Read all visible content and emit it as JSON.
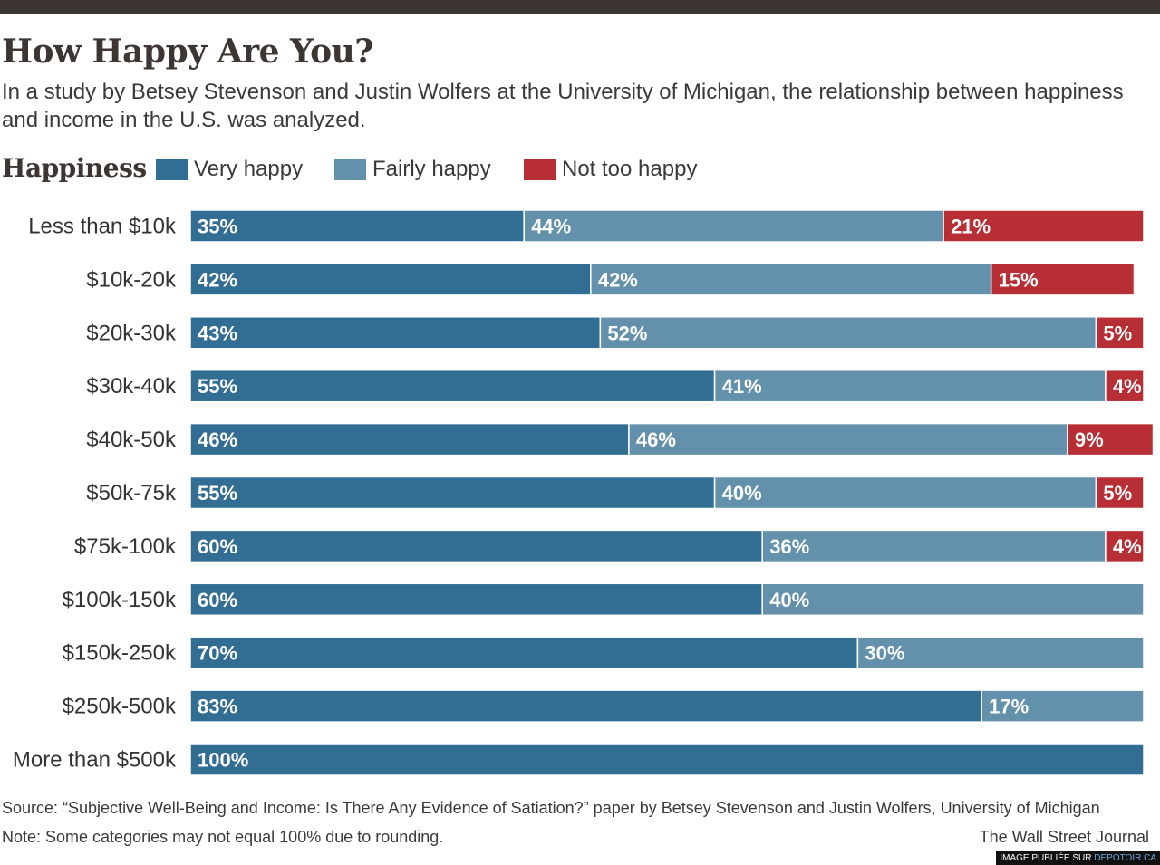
{
  "title": "How Happy Are You?",
  "subtitle": "In a study by Betsey Stevenson and Justin Wolfers at the University of Michigan, the relationship between happiness and income in the U.S. was analyzed.",
  "legend": {
    "title": "Happiness",
    "items": [
      {
        "label": "Very happy",
        "color": "#326d93"
      },
      {
        "label": "Fairly happy",
        "color": "#6390ab"
      },
      {
        "label": "Not too happy",
        "color": "#b72f35"
      }
    ]
  },
  "chart_data": {
    "type": "bar",
    "orientation": "horizontal",
    "stacked": true,
    "categories": [
      "Less than $10k",
      "$10k-20k",
      "$20k-30k",
      "$30k-40k",
      "$40k-50k",
      "$50k-75k",
      "$75k-100k",
      "$100k-150k",
      "$150k-250k",
      "$250k-500k",
      "More than $500k"
    ],
    "series": [
      {
        "name": "Very happy",
        "color": "#326d93",
        "values": [
          35,
          42,
          43,
          55,
          46,
          55,
          60,
          60,
          70,
          83,
          100
        ]
      },
      {
        "name": "Fairly happy",
        "color": "#6390ab",
        "values": [
          44,
          42,
          52,
          41,
          46,
          40,
          36,
          40,
          30,
          17,
          0
        ]
      },
      {
        "name": "Not too happy",
        "color": "#b72f35",
        "values": [
          21,
          15,
          5,
          4,
          9,
          5,
          4,
          0,
          0,
          0,
          0
        ]
      }
    ],
    "value_suffix": "%",
    "grid": false,
    "legend_position": "top"
  },
  "footer": {
    "source": "Source: “Subjective Well-Being and Income: Is There Any Evidence of Satiation?” paper by Betsey Stevenson and Justin Wolfers, University of Michigan",
    "note": "Note: Some categories may not equal 100% due to rounding.",
    "credit": "The Wall Street Journal"
  },
  "watermark": {
    "prefix": "IMAGE PUBLIÉE SUR ",
    "site": "DEPOTOIR.CA"
  }
}
